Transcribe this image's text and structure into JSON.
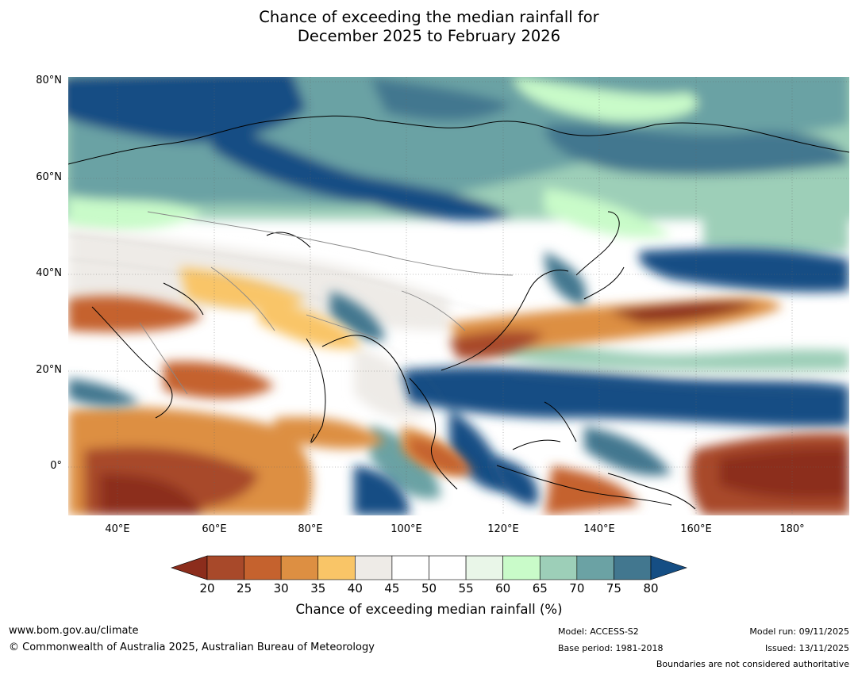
{
  "title_line1": "Chance of exceeding the median rainfall for",
  "title_line2": "December 2025 to February 2026",
  "map": {
    "lat_labels": [
      "80°N",
      "60°N",
      "40°N",
      "20°N",
      "0°"
    ],
    "lon_labels": [
      "40°E",
      "60°E",
      "80°E",
      "100°E",
      "120°E",
      "140°E",
      "160°E",
      "180°"
    ],
    "lat_values": [
      80,
      60,
      40,
      20,
      0
    ],
    "lon_values": [
      40,
      60,
      80,
      100,
      120,
      140,
      160,
      180
    ],
    "extent": {
      "lon_min": 30,
      "lon_max": 191,
      "lat_min": -10,
      "lat_max": 80
    }
  },
  "colorbar": {
    "ticks": [
      "20",
      "25",
      "30",
      "35",
      "40",
      "45",
      "50",
      "55",
      "60",
      "65",
      "70",
      "75",
      "80"
    ],
    "colors": [
      "#a8492a",
      "#c5622e",
      "#dd8f42",
      "#f9c567",
      "#eeebe7",
      "#ffffff",
      "#ffffff",
      "#e9f6e8",
      "#c9fbc9",
      "#9dcfb8",
      "#6ba2a4",
      "#42778f"
    ],
    "under_color": "#8c2d1c",
    "over_color": "#154e84",
    "label": "Chance of exceeding median rainfall (%)"
  },
  "footer": {
    "website": "www.bom.gov.au/climate",
    "copyright": "© Commonwealth of Australia 2025, Australian Bureau of Meteorology",
    "model": "Model: ACCESS-S2",
    "base_period": "Base period: 1981-2018",
    "model_run": "Model run: 09/11/2025",
    "issued": "Issued: 13/11/2025",
    "disclaimer": "Boundaries are not considered authoritative"
  }
}
